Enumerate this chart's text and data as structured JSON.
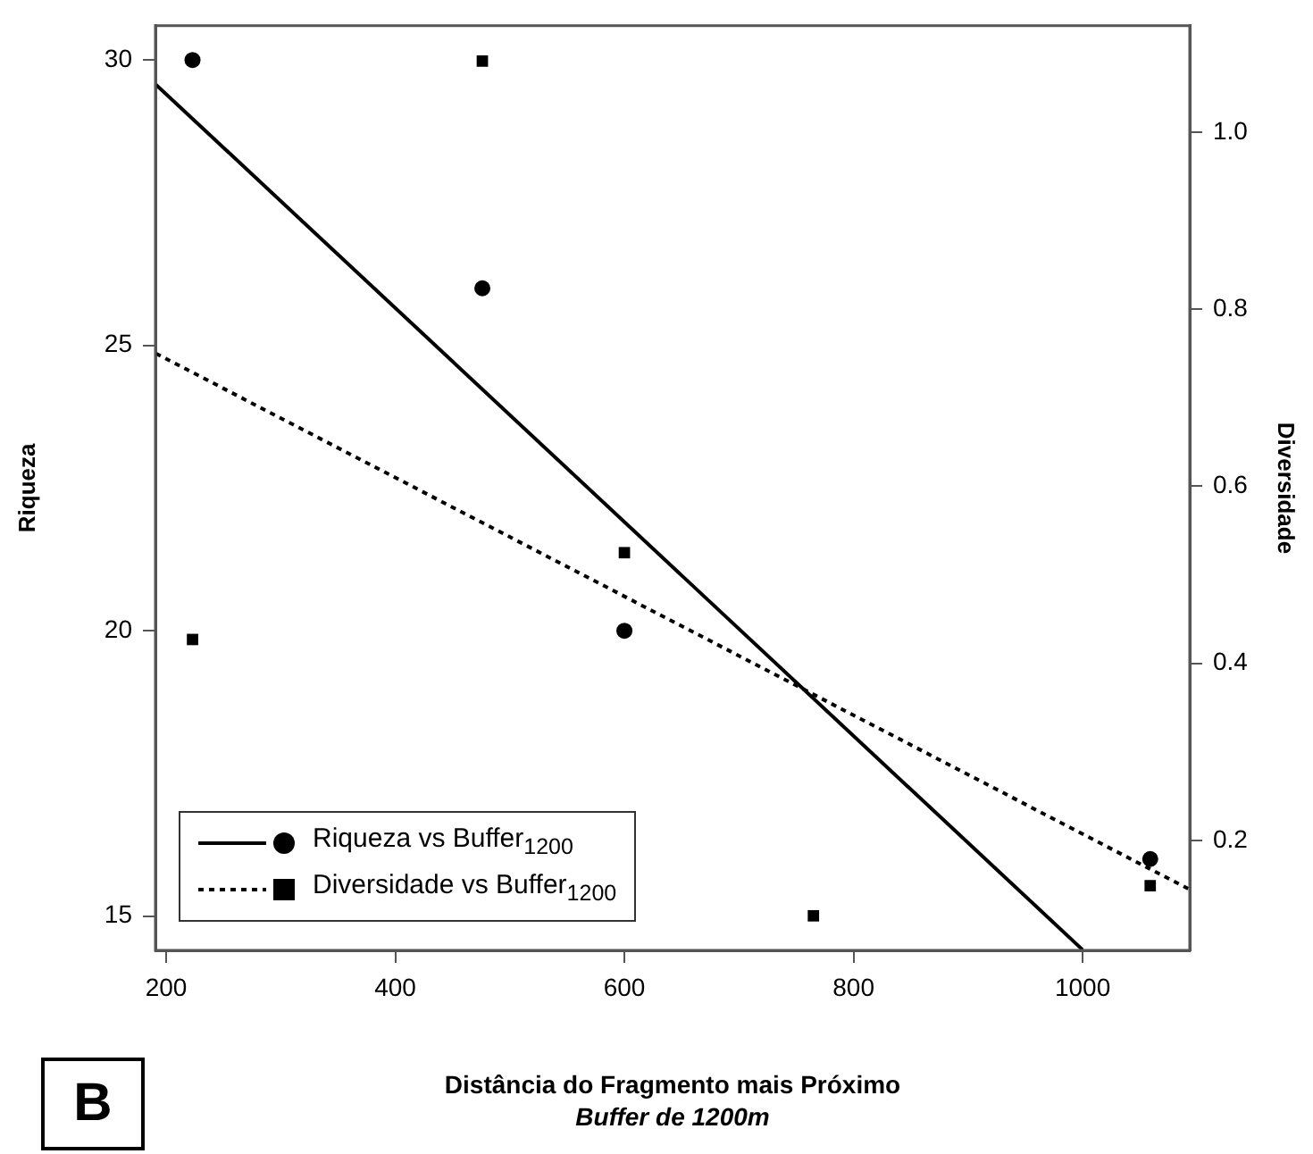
{
  "chart_data": {
    "type": "scatter",
    "xlabel": "Distância do Fragmento mais Próximo",
    "ylabel": "Riqueza",
    "y2label": "Diversidade",
    "annotations": [
      "Buffer de 1200m",
      "B"
    ],
    "xlim": [
      190.6,
      1093.5
    ],
    "xticks": [
      200,
      400,
      600,
      800,
      1000
    ],
    "ylim": [
      14.4,
      30.6
    ],
    "yticks": [
      15,
      20,
      25,
      30
    ],
    "y2lim": [
      0.076,
      1.12
    ],
    "y2ticks": [
      0.2,
      0.4,
      0.6,
      0.8,
      {
        "value": 1,
        "label": "1.0"
      }
    ],
    "legend": "bottom left",
    "series": [
      {
        "name": "Riqueza vs Buffer$_{1200}$",
        "marker": "circle",
        "color": "#000000",
        "x": [
          223,
          476,
          600,
          1059
        ],
        "values": [
          30,
          26,
          20,
          16
        ]
      },
      {
        "type": "line",
        "line_style": "solid",
        "color": "#000000",
        "x": [
          191,
          1000
        ],
        "values": [
          29.57,
          14.41
        ]
      },
      {
        "name": "Diversidade vs Buffer$_{1200}$",
        "marker": "square",
        "axis": "y2",
        "color": "#000000",
        "x": [
          223,
          476,
          600,
          765,
          1059
        ],
        "values": [
          0.427,
          1.08,
          0.525,
          0.115,
          0.149
        ]
      },
      {
        "type": "line",
        "line_style": "dotted",
        "axis": "y2",
        "color": "#000000",
        "x": [
          191,
          1093
        ],
        "values": [
          0.75,
          0.145
        ]
      }
    ]
  }
}
